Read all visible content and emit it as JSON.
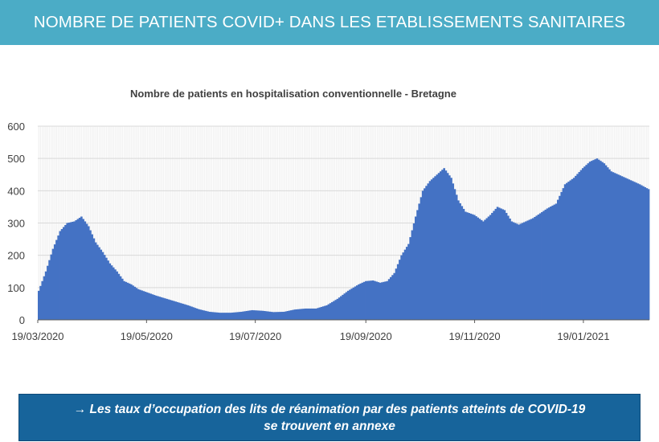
{
  "header": {
    "title": "NOMBRE DE PATIENTS COVID+ DANS LES ETABLISSEMENTS SANITAIRES"
  },
  "footer": {
    "line1": "→ Les taux d’occupation des lits de réanimation par des patients atteints de COVID-19",
    "line2": "se trouvent en annexe"
  },
  "chart_data": {
    "type": "area",
    "title": "Nombre de patients en hospitalisation conventionnelle - Bretagne",
    "xlabel": "",
    "ylabel": "",
    "ylim": [
      0,
      600
    ],
    "yticks": [
      0,
      100,
      200,
      300,
      400,
      500,
      600
    ],
    "xlim": [
      "2020-03-19",
      "2021-02-25"
    ],
    "xticks": [
      "19/03/2020",
      "19/05/2020",
      "19/07/2020",
      "19/09/2020",
      "19/11/2020",
      "19/01/2021"
    ],
    "grid": true,
    "legend": "none",
    "color": "#4472c4",
    "series": [
      {
        "x": [
          "2020-03-19",
          "2020-03-23",
          "2020-03-27",
          "2020-03-31",
          "2020-04-04",
          "2020-04-08",
          "2020-04-12",
          "2020-04-16",
          "2020-04-20",
          "2020-04-24",
          "2020-04-28",
          "2020-05-02",
          "2020-05-06",
          "2020-05-10",
          "2020-05-14",
          "2020-05-19",
          "2020-05-24",
          "2020-05-30",
          "2020-06-05",
          "2020-06-11",
          "2020-06-17",
          "2020-06-23",
          "2020-06-29",
          "2020-07-05",
          "2020-07-11",
          "2020-07-17",
          "2020-07-23",
          "2020-07-29",
          "2020-08-04",
          "2020-08-10",
          "2020-08-16",
          "2020-08-22",
          "2020-08-28",
          "2020-09-03",
          "2020-09-09",
          "2020-09-15",
          "2020-09-19",
          "2020-09-23",
          "2020-09-27",
          "2020-10-01",
          "2020-10-05",
          "2020-10-09",
          "2020-10-13",
          "2020-10-17",
          "2020-10-21",
          "2020-10-25",
          "2020-10-29",
          "2020-11-02",
          "2020-11-06",
          "2020-11-10",
          "2020-11-14",
          "2020-11-19",
          "2020-11-24",
          "2020-11-28",
          "2020-12-02",
          "2020-12-06",
          "2020-12-10",
          "2020-12-14",
          "2020-12-18",
          "2020-12-22",
          "2020-12-26",
          "2020-12-30",
          "2021-01-04",
          "2021-01-09",
          "2021-01-14",
          "2021-01-19",
          "2021-01-23",
          "2021-01-27",
          "2021-01-31",
          "2021-02-04",
          "2021-02-08",
          "2021-02-12",
          "2021-02-16",
          "2021-02-20",
          "2021-02-25"
        ],
        "y": [
          90,
          150,
          220,
          275,
          300,
          305,
          320,
          290,
          240,
          210,
          175,
          150,
          120,
          110,
          95,
          85,
          75,
          65,
          55,
          45,
          33,
          25,
          22,
          22,
          25,
          30,
          28,
          24,
          25,
          32,
          35,
          35,
          45,
          65,
          90,
          110,
          120,
          122,
          115,
          120,
          145,
          200,
          235,
          320,
          400,
          430,
          450,
          470,
          440,
          370,
          335,
          325,
          305,
          325,
          350,
          340,
          305,
          295,
          305,
          315,
          330,
          345,
          360,
          420,
          440,
          470,
          490,
          500,
          485,
          460,
          450,
          440,
          430,
          420,
          405
        ]
      }
    ]
  }
}
